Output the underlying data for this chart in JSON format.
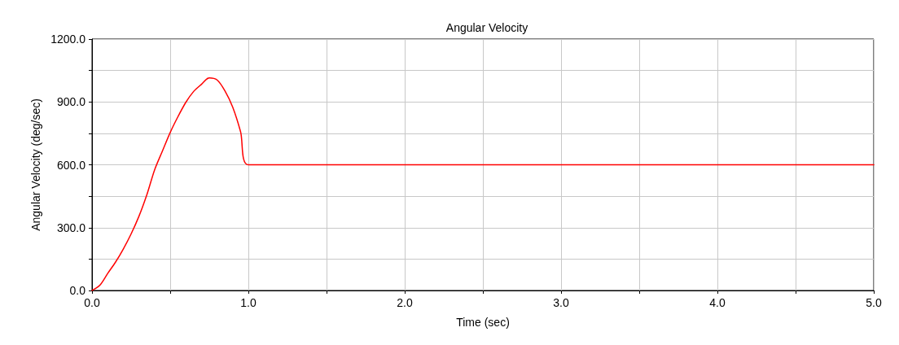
{
  "chart_data": {
    "type": "line",
    "title": "Angular Velocity",
    "xlabel": "Time (sec)",
    "ylabel": "Angular Velocity (deg/sec)",
    "x": [
      0,
      0.05,
      0.1,
      0.15,
      0.2,
      0.25,
      0.3,
      0.35,
      0.4,
      0.45,
      0.5,
      0.55,
      0.6,
      0.65,
      0.7,
      0.75,
      0.8,
      0.85,
      0.9,
      0.95,
      1.0,
      5.0
    ],
    "series": [
      {
        "color": "#ff0000",
        "values": [
          0,
          25,
          81,
          135,
          198,
          270,
          354,
          455,
          575,
          665,
          754,
          830,
          898,
          950,
          984,
          1015,
          1005,
          953,
          875,
          758,
          600,
          600
        ]
      }
    ],
    "xlim": [
      0,
      5
    ],
    "xticks": [
      {
        "value": 0,
        "label": "0.0"
      },
      {
        "value": 0.5,
        "label": null
      },
      {
        "value": 1,
        "label": "1.0"
      },
      {
        "value": 1.5,
        "label": null
      },
      {
        "value": 2,
        "label": "2.0"
      },
      {
        "value": 2.5,
        "label": null
      },
      {
        "value": 3,
        "label": "3.0"
      },
      {
        "value": 3.5,
        "label": null
      },
      {
        "value": 4,
        "label": "4.0"
      },
      {
        "value": 4.5,
        "label": null
      },
      {
        "value": 5,
        "label": "5.0"
      }
    ],
    "ylim": [
      0,
      1200
    ],
    "yticks": [
      {
        "value": 0,
        "label": "0.0"
      },
      {
        "value": 150,
        "label": null
      },
      {
        "value": 300,
        "label": "300.0"
      },
      {
        "value": 450,
        "label": null
      },
      {
        "value": 600,
        "label": "600.0"
      },
      {
        "value": 750,
        "label": null
      },
      {
        "value": 900,
        "label": "900.0"
      },
      {
        "value": 1050,
        "label": null
      },
      {
        "value": 1200,
        "label": "1200.0"
      }
    ],
    "grid": true,
    "marker": "none",
    "line_style": "solid"
  }
}
